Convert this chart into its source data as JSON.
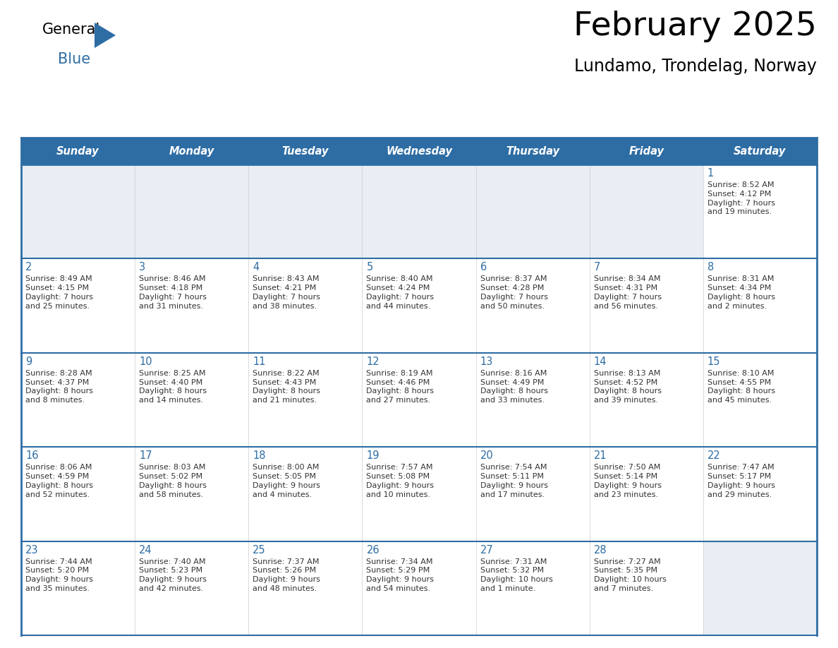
{
  "title": "February 2025",
  "subtitle": "Lundamo, Trondelag, Norway",
  "header_bg_color": "#2e6da4",
  "header_text_color": "#ffffff",
  "cell_bg_color": "#ffffff",
  "empty_cell_bg_color": "#e8eef4",
  "border_color": "#2e6da4",
  "day_number_color": "#2e6da4",
  "text_color": "#333333",
  "days_of_week": [
    "Sunday",
    "Monday",
    "Tuesday",
    "Wednesday",
    "Thursday",
    "Friday",
    "Saturday"
  ],
  "calendar_data": [
    [
      null,
      null,
      null,
      null,
      null,
      null,
      {
        "day": "1",
        "sunrise": "8:52 AM",
        "sunset": "4:12 PM",
        "daylight": "7 hours\nand 19 minutes."
      }
    ],
    [
      {
        "day": "2",
        "sunrise": "8:49 AM",
        "sunset": "4:15 PM",
        "daylight": "7 hours\nand 25 minutes."
      },
      {
        "day": "3",
        "sunrise": "8:46 AM",
        "sunset": "4:18 PM",
        "daylight": "7 hours\nand 31 minutes."
      },
      {
        "day": "4",
        "sunrise": "8:43 AM",
        "sunset": "4:21 PM",
        "daylight": "7 hours\nand 38 minutes."
      },
      {
        "day": "5",
        "sunrise": "8:40 AM",
        "sunset": "4:24 PM",
        "daylight": "7 hours\nand 44 minutes."
      },
      {
        "day": "6",
        "sunrise": "8:37 AM",
        "sunset": "4:28 PM",
        "daylight": "7 hours\nand 50 minutes."
      },
      {
        "day": "7",
        "sunrise": "8:34 AM",
        "sunset": "4:31 PM",
        "daylight": "7 hours\nand 56 minutes."
      },
      {
        "day": "8",
        "sunrise": "8:31 AM",
        "sunset": "4:34 PM",
        "daylight": "8 hours\nand 2 minutes."
      }
    ],
    [
      {
        "day": "9",
        "sunrise": "8:28 AM",
        "sunset": "4:37 PM",
        "daylight": "8 hours\nand 8 minutes."
      },
      {
        "day": "10",
        "sunrise": "8:25 AM",
        "sunset": "4:40 PM",
        "daylight": "8 hours\nand 14 minutes."
      },
      {
        "day": "11",
        "sunrise": "8:22 AM",
        "sunset": "4:43 PM",
        "daylight": "8 hours\nand 21 minutes."
      },
      {
        "day": "12",
        "sunrise": "8:19 AM",
        "sunset": "4:46 PM",
        "daylight": "8 hours\nand 27 minutes."
      },
      {
        "day": "13",
        "sunrise": "8:16 AM",
        "sunset": "4:49 PM",
        "daylight": "8 hours\nand 33 minutes."
      },
      {
        "day": "14",
        "sunrise": "8:13 AM",
        "sunset": "4:52 PM",
        "daylight": "8 hours\nand 39 minutes."
      },
      {
        "day": "15",
        "sunrise": "8:10 AM",
        "sunset": "4:55 PM",
        "daylight": "8 hours\nand 45 minutes."
      }
    ],
    [
      {
        "day": "16",
        "sunrise": "8:06 AM",
        "sunset": "4:59 PM",
        "daylight": "8 hours\nand 52 minutes."
      },
      {
        "day": "17",
        "sunrise": "8:03 AM",
        "sunset": "5:02 PM",
        "daylight": "8 hours\nand 58 minutes."
      },
      {
        "day": "18",
        "sunrise": "8:00 AM",
        "sunset": "5:05 PM",
        "daylight": "9 hours\nand 4 minutes."
      },
      {
        "day": "19",
        "sunrise": "7:57 AM",
        "sunset": "5:08 PM",
        "daylight": "9 hours\nand 10 minutes."
      },
      {
        "day": "20",
        "sunrise": "7:54 AM",
        "sunset": "5:11 PM",
        "daylight": "9 hours\nand 17 minutes."
      },
      {
        "day": "21",
        "sunrise": "7:50 AM",
        "sunset": "5:14 PM",
        "daylight": "9 hours\nand 23 minutes."
      },
      {
        "day": "22",
        "sunrise": "7:47 AM",
        "sunset": "5:17 PM",
        "daylight": "9 hours\nand 29 minutes."
      }
    ],
    [
      {
        "day": "23",
        "sunrise": "7:44 AM",
        "sunset": "5:20 PM",
        "daylight": "9 hours\nand 35 minutes."
      },
      {
        "day": "24",
        "sunrise": "7:40 AM",
        "sunset": "5:23 PM",
        "daylight": "9 hours\nand 42 minutes."
      },
      {
        "day": "25",
        "sunrise": "7:37 AM",
        "sunset": "5:26 PM",
        "daylight": "9 hours\nand 48 minutes."
      },
      {
        "day": "26",
        "sunrise": "7:34 AM",
        "sunset": "5:29 PM",
        "daylight": "9 hours\nand 54 minutes."
      },
      {
        "day": "27",
        "sunrise": "7:31 AM",
        "sunset": "5:32 PM",
        "daylight": "10 hours\nand 1 minute."
      },
      {
        "day": "28",
        "sunrise": "7:27 AM",
        "sunset": "5:35 PM",
        "daylight": "10 hours\nand 7 minutes."
      },
      null
    ]
  ]
}
